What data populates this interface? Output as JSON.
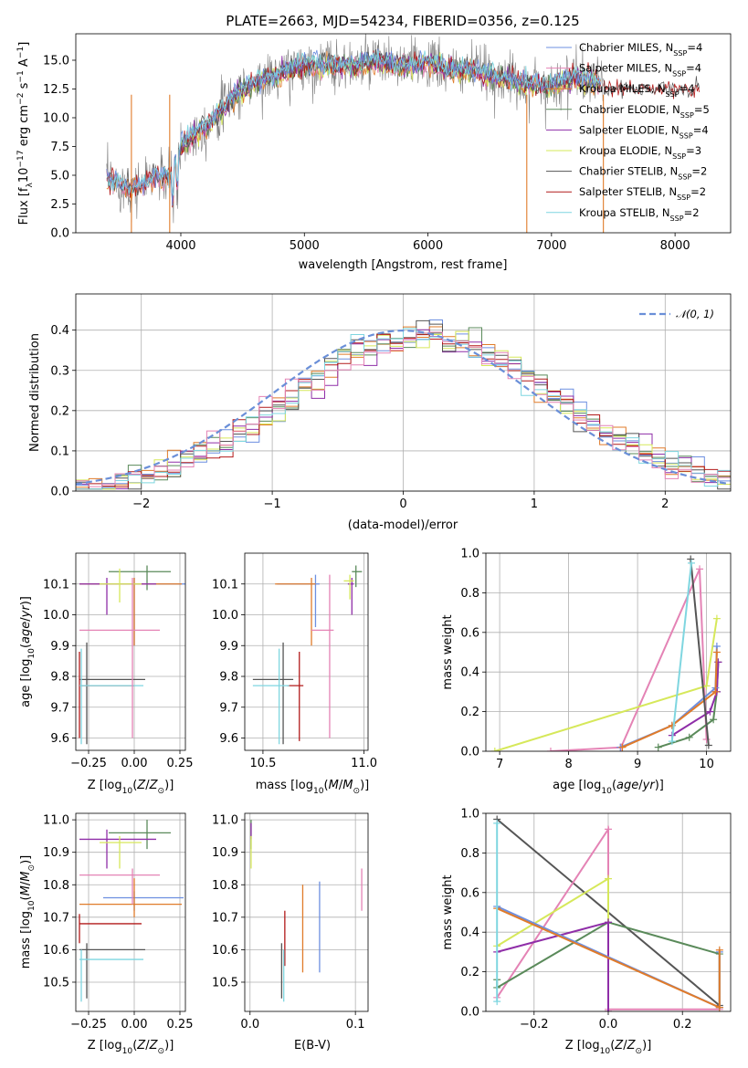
{
  "colors": {
    "blue": "#6d8fe0",
    "orange": "#e07b2a",
    "green": "#5a8a5a",
    "purple": "#8f2ea8",
    "yellow": "#d6e85a",
    "gray": "#555555",
    "red": "#b21a1a",
    "cyan": "#7fd6e0",
    "pink": "#e483b5",
    "spec_gray": "#808080",
    "gauss": "#6a8fd8"
  },
  "chart_data": [
    {
      "id": "spectrum",
      "type": "line",
      "title": "PLATE=2663, MJD=54234, FIBERID=0356, z=0.125",
      "xlabel": "wavelength [Angstrom, rest frame]",
      "ylabel": "Flux [fλ10⁻¹⁷ erg cm⁻² s⁻¹ A⁻¹]",
      "xlim": [
        3150,
        8450
      ],
      "ylim": [
        0,
        17.3
      ],
      "xticks": [
        "4000",
        "5000",
        "6000",
        "7000",
        "8000"
      ],
      "xtick_values": [
        4000,
        5000,
        6000,
        7000,
        8000
      ],
      "yticks": [
        "0.0",
        "2.5",
        "5.0",
        "7.5",
        "10.0",
        "12.5",
        "15.0"
      ],
      "ytick_values": [
        0,
        2.5,
        5,
        7.5,
        10,
        12.5,
        15
      ],
      "grid": false,
      "legend_position": "top-right",
      "data_envelope": {
        "x": [
          3400,
          3500,
          3600,
          3700,
          3800,
          3900,
          4000,
          4100,
          4200,
          4300,
          4400,
          4500,
          4600,
          4800,
          5000,
          5200,
          5400,
          5600,
          5800,
          6000,
          6200,
          6400,
          6600,
          6800,
          7000,
          7200,
          7400
        ],
        "y": [
          4.8,
          4.2,
          3.8,
          4.2,
          5.0,
          4.6,
          7.4,
          8.6,
          9.2,
          10.4,
          11.6,
          12.4,
          13.0,
          13.8,
          14.6,
          14.6,
          14.5,
          14.9,
          14.5,
          14.8,
          14.0,
          14.1,
          13.4,
          12.9,
          12.8,
          13.6,
          12.9
        ]
      },
      "series": [
        {
          "name": "Chabrier MILES, N_SSP=4",
          "color": "blue"
        },
        {
          "name": "Salpeter MILES, N_SSP=4",
          "color": "pink"
        },
        {
          "name": "Kroupa MILES, N_SSP=4",
          "color": "orange"
        },
        {
          "name": "Chabrier ELODIE, N_SSP=5",
          "color": "green"
        },
        {
          "name": "Salpeter ELODIE, N_SSP=4",
          "color": "purple"
        },
        {
          "name": "Kroupa ELODIE, N_SSP=3",
          "color": "yellow"
        },
        {
          "name": "Chabrier STELIB, N_SSP=2",
          "color": "gray"
        },
        {
          "name": "Salpeter STELIB, N_SSP=2",
          "color": "red"
        },
        {
          "name": "Kroupa STELIB, N_SSP=2",
          "color": "cyan"
        }
      ]
    },
    {
      "id": "residuals",
      "type": "line",
      "xlabel": "(data-model)/error",
      "ylabel": "Normed distribution",
      "xlim": [
        -2.5,
        2.5
      ],
      "ylim": [
        0,
        0.49
      ],
      "xticks": [
        "−2",
        "−1",
        "0",
        "1",
        "2"
      ],
      "xtick_values": [
        -2,
        -1,
        0,
        1,
        2
      ],
      "yticks": [
        "0.0",
        "0.1",
        "0.2",
        "0.3",
        "0.4"
      ],
      "ytick_values": [
        0,
        0.1,
        0.2,
        0.3,
        0.4
      ],
      "grid": true,
      "legend_position": "top-right",
      "legend": "𝒩(0, 1)",
      "bin_width": 0.1
    },
    {
      "id": "age_vs_Z",
      "type": "scatter",
      "xlabel": "Z [log₁₀(Z/Z⊙)]",
      "ylabel": "age  [log₁₀(age/yr)]",
      "xlim": [
        -0.32,
        0.28
      ],
      "ylim": [
        9.56,
        10.2
      ],
      "xticks": [
        "−0.25",
        "0.00",
        "0.25"
      ],
      "xtick_values": [
        -0.25,
        0,
        0.25
      ],
      "yticks": [
        "9.6",
        "9.7",
        "9.8",
        "9.9",
        "10.0",
        "10.1"
      ],
      "ytick_values": [
        9.6,
        9.7,
        9.8,
        9.9,
        10.0,
        10.1
      ],
      "grid": true,
      "points": [
        {
          "c": "blue",
          "x": 0.0,
          "y": 10.1,
          "x0": -0.3,
          "x1": 0.3,
          "y0": 9.9,
          "y1": 10.12
        },
        {
          "c": "orange",
          "x": 0.0,
          "y": 10.1,
          "x0": -0.3,
          "x1": 0.26,
          "y0": 9.9,
          "y1": 10.12
        },
        {
          "c": "green",
          "x": 0.07,
          "y": 10.14,
          "x0": -0.14,
          "x1": 0.2,
          "y0": 10.08,
          "y1": 10.16
        },
        {
          "c": "purple",
          "x": -0.15,
          "y": 10.1,
          "x0": -0.3,
          "x1": 0.12,
          "y0": 10.0,
          "y1": 10.12
        },
        {
          "c": "yellow",
          "x": -0.08,
          "y": 10.1,
          "x0": -0.19,
          "x1": 0.04,
          "y0": 10.04,
          "y1": 10.15
        },
        {
          "c": "gray",
          "x": -0.26,
          "y": 9.79,
          "x0": -0.3,
          "x1": 0.06,
          "y0": 9.58,
          "y1": 9.91
        },
        {
          "c": "red",
          "x": -0.3,
          "y": 9.77,
          "x0": -0.3,
          "x1": 0.0,
          "y0": 9.6,
          "y1": 9.88
        },
        {
          "c": "cyan",
          "x": -0.29,
          "y": 9.77,
          "x0": -0.3,
          "x1": 0.05,
          "y0": 9.58,
          "y1": 9.89
        },
        {
          "c": "pink",
          "x": -0.01,
          "y": 9.95,
          "x0": -0.3,
          "x1": 0.14,
          "y0": 9.6,
          "y1": 10.12
        }
      ]
    },
    {
      "id": "age_vs_mass",
      "type": "scatter",
      "xlabel": "mass [log₁₀(M/M⊙)]",
      "xlim": [
        10.41,
        11.02
      ],
      "ylim": [
        9.56,
        10.2
      ],
      "xticks": [
        "10.5",
        "11.0"
      ],
      "xtick_values": [
        10.5,
        11.0
      ],
      "yticks": [
        "9.6",
        "9.7",
        "9.8",
        "9.9",
        "10.0",
        "10.1"
      ],
      "ytick_values": [
        9.6,
        9.7,
        9.8,
        9.9,
        10.0,
        10.1
      ],
      "grid": true,
      "points": [
        {
          "c": "blue",
          "x": 10.76,
          "y": 10.1,
          "x0": 10.57,
          "x1": 10.78,
          "y0": 9.96,
          "y1": 10.13
        },
        {
          "c": "orange",
          "x": 10.74,
          "y": 10.1,
          "x0": 10.56,
          "x1": 10.76,
          "y0": 9.9,
          "y1": 10.12
        },
        {
          "c": "green",
          "x": 10.96,
          "y": 10.14,
          "x0": 10.94,
          "x1": 10.99,
          "y0": 10.09,
          "y1": 10.16
        },
        {
          "c": "purple",
          "x": 10.94,
          "y": 10.1,
          "x0": 10.92,
          "x1": 10.95,
          "y0": 10.0,
          "y1": 10.12
        },
        {
          "c": "yellow",
          "x": 10.93,
          "y": 10.11,
          "x0": 10.9,
          "x1": 10.95,
          "y0": 10.05,
          "y1": 10.13
        },
        {
          "c": "gray",
          "x": 10.6,
          "y": 9.79,
          "x0": 10.45,
          "x1": 10.65,
          "y0": 9.58,
          "y1": 9.91
        },
        {
          "c": "red",
          "x": 10.68,
          "y": 9.77,
          "x0": 10.62,
          "x1": 10.7,
          "y0": 9.59,
          "y1": 9.88
        },
        {
          "c": "cyan",
          "x": 10.58,
          "y": 9.77,
          "x0": 10.45,
          "x1": 10.63,
          "y0": 9.58,
          "y1": 9.89
        },
        {
          "c": "pink",
          "x": 10.83,
          "y": 9.95,
          "x0": 10.74,
          "x1": 10.85,
          "y0": 9.6,
          "y1": 10.13
        }
      ]
    },
    {
      "id": "weight_vs_age",
      "type": "line",
      "xlabel": "age  [log₁₀(age/yr)]",
      "ylabel": "mass weight",
      "xlim": [
        6.8,
        10.35
      ],
      "ylim": [
        0,
        1.0
      ],
      "xticks": [
        "7",
        "8",
        "9",
        "10"
      ],
      "xtick_values": [
        7,
        8,
        9,
        10
      ],
      "yticks": [
        "0.0",
        "0.2",
        "0.4",
        "0.6",
        "0.8",
        "1.0"
      ],
      "ytick_values": [
        0,
        0.2,
        0.4,
        0.6,
        0.8,
        1.0
      ],
      "grid": true,
      "series": [
        {
          "c": "pink",
          "x": [
            7.74,
            8.76,
            9.9,
            10.0
          ],
          "y": [
            0.0,
            0.02,
            0.92,
            0.06
          ]
        },
        {
          "c": "yellow",
          "x": [
            6.93,
            10.0,
            10.15
          ],
          "y": [
            0.0,
            0.33,
            0.67
          ]
        },
        {
          "c": "green",
          "x": [
            9.3,
            9.75,
            10.1,
            10.15,
            10.17
          ],
          "y": [
            0.02,
            0.07,
            0.16,
            0.3,
            0.45
          ]
        },
        {
          "c": "purple",
          "x": [
            9.5,
            10.05,
            10.15,
            10.17
          ],
          "y": [
            0.08,
            0.2,
            0.3,
            0.45
          ]
        },
        {
          "c": "blue",
          "x": [
            8.75,
            9.5,
            10.13,
            10.15
          ],
          "y": [
            0.02,
            0.13,
            0.32,
            0.53
          ]
        },
        {
          "c": "orange",
          "x": [
            8.78,
            9.5,
            10.13,
            10.15
          ],
          "y": [
            0.02,
            0.13,
            0.3,
            0.5
          ]
        },
        {
          "c": "gray",
          "x": [
            9.77,
            10.03
          ],
          "y": [
            0.97,
            0.03
          ]
        },
        {
          "c": "cyan",
          "x": [
            9.5,
            9.78
          ],
          "y": [
            0.05,
            0.95
          ]
        }
      ]
    },
    {
      "id": "mass_vs_Z",
      "type": "scatter",
      "xlabel": "Z [log₁₀(Z/Z⊙)]",
      "ylabel": "mass [log₁₀(M/M⊙)]",
      "xlim": [
        -0.32,
        0.28
      ],
      "ylim": [
        10.41,
        11.02
      ],
      "xticks": [
        "−0.25",
        "0.00",
        "0.25"
      ],
      "xtick_values": [
        -0.25,
        0,
        0.25
      ],
      "yticks": [
        "10.5",
        "10.6",
        "10.7",
        "10.8",
        "10.9",
        "11.0"
      ],
      "ytick_values": [
        10.5,
        10.6,
        10.7,
        10.8,
        10.9,
        11.0
      ],
      "grid": true,
      "points": [
        {
          "c": "blue",
          "x": 0.0,
          "y": 10.76,
          "x0": -0.17,
          "x1": 0.27,
          "y0": 10.72,
          "y1": 10.78
        },
        {
          "c": "orange",
          "x": 0.0,
          "y": 10.74,
          "x0": -0.3,
          "x1": 0.26,
          "y0": 10.7,
          "y1": 10.82
        },
        {
          "c": "green",
          "x": 0.07,
          "y": 10.96,
          "x0": -0.14,
          "x1": 0.2,
          "y0": 10.91,
          "y1": 11.0
        },
        {
          "c": "purple",
          "x": -0.15,
          "y": 10.94,
          "x0": -0.3,
          "x1": 0.12,
          "y0": 10.85,
          "y1": 10.97
        },
        {
          "c": "yellow",
          "x": -0.08,
          "y": 10.93,
          "x0": -0.19,
          "x1": 0.04,
          "y0": 10.85,
          "y1": 10.95
        },
        {
          "c": "gray",
          "x": -0.26,
          "y": 10.6,
          "x0": -0.3,
          "x1": 0.06,
          "y0": 10.45,
          "y1": 10.62
        },
        {
          "c": "red",
          "x": -0.3,
          "y": 10.68,
          "x0": -0.3,
          "x1": 0.04,
          "y0": 10.62,
          "y1": 10.71
        },
        {
          "c": "cyan",
          "x": -0.29,
          "y": 10.57,
          "x0": -0.3,
          "x1": 0.05,
          "y0": 10.44,
          "y1": 10.6
        },
        {
          "c": "pink",
          "x": -0.01,
          "y": 10.83,
          "x0": -0.3,
          "x1": 0.14,
          "y0": 10.74,
          "y1": 10.85
        }
      ]
    },
    {
      "id": "mass_vs_ebv",
      "type": "scatter",
      "xlabel": "E(B-V)",
      "xlim": [
        -0.005,
        0.112
      ],
      "ylim": [
        10.41,
        11.02
      ],
      "xticks": [
        "0.0",
        "0.1"
      ],
      "xtick_values": [
        0,
        0.1
      ],
      "yticks": [
        "10.5",
        "10.6",
        "10.7",
        "10.8",
        "10.9",
        "11.0"
      ],
      "ytick_values": [
        10.5,
        10.6,
        10.7,
        10.8,
        10.9,
        11.0
      ],
      "grid": true,
      "points": [
        {
          "c": "blue",
          "x": 0.066,
          "y": 10.76,
          "y0": 10.53,
          "y1": 10.81
        },
        {
          "c": "orange",
          "x": 0.05,
          "y": 10.74,
          "y0": 10.53,
          "y1": 10.8
        },
        {
          "c": "green",
          "x": 0.001,
          "y": 10.96,
          "y0": 10.91,
          "y1": 11.0
        },
        {
          "c": "purple",
          "x": 0.001,
          "y": 10.94,
          "y0": 10.94,
          "y1": 10.99
        },
        {
          "c": "yellow",
          "x": 0.001,
          "y": 10.93,
          "y0": 10.85,
          "y1": 10.95
        },
        {
          "c": "gray",
          "x": 0.03,
          "y": 10.6,
          "y0": 10.45,
          "y1": 10.62
        },
        {
          "c": "red",
          "x": 0.033,
          "y": 10.68,
          "y0": 10.55,
          "y1": 10.72
        },
        {
          "c": "cyan",
          "x": 0.032,
          "y": 10.57,
          "y0": 10.44,
          "y1": 10.6
        },
        {
          "c": "pink",
          "x": 0.106,
          "y": 10.83,
          "y0": 10.72,
          "y1": 10.85
        }
      ]
    },
    {
      "id": "weight_vs_Z",
      "type": "line",
      "xlabel": "Z [log₁₀(Z/Z⊙)]",
      "ylabel": "mass weight",
      "xlim": [
        -0.33,
        0.33
      ],
      "ylim": [
        0,
        1.0
      ],
      "xticks": [
        "−0.2",
        "0.0",
        "0.2"
      ],
      "xtick_values": [
        -0.2,
        0,
        0.2
      ],
      "yticks": [
        "0.0",
        "0.2",
        "0.4",
        "0.6",
        "0.8",
        "1.0"
      ],
      "ytick_values": [
        0,
        0.2,
        0.4,
        0.6,
        0.8,
        1.0
      ],
      "grid": true,
      "series": [
        {
          "c": "gray",
          "x": [
            -0.3,
            0.3
          ],
          "y": [
            0.97,
            0.03
          ]
        },
        {
          "c": "pink",
          "x": [
            -0.3,
            0.0,
            0.0,
            0.3
          ],
          "y": [
            0.07,
            0.92,
            0.01,
            0.01
          ]
        },
        {
          "c": "yellow",
          "x": [
            -0.3,
            0.0,
            0.0
          ],
          "y": [
            0.33,
            0.67,
            0.0
          ]
        },
        {
          "c": "green",
          "x": [
            -0.3,
            -0.3,
            0.0,
            0.3,
            0.3
          ],
          "y": [
            0.16,
            0.12,
            0.45,
            0.29,
            0.02
          ]
        },
        {
          "c": "purple",
          "x": [
            -0.3,
            0.0,
            0.0
          ],
          "y": [
            0.3,
            0.45,
            0.0
          ]
        },
        {
          "c": "blue",
          "x": [
            -0.3,
            0.3,
            0.3
          ],
          "y": [
            0.53,
            0.02,
            0.3
          ]
        },
        {
          "c": "orange",
          "x": [
            -0.3,
            0.3,
            0.3
          ],
          "y": [
            0.52,
            0.02,
            0.31
          ]
        },
        {
          "c": "cyan",
          "x": [
            -0.3,
            -0.3
          ],
          "y": [
            0.05,
            0.95
          ]
        }
      ]
    }
  ]
}
